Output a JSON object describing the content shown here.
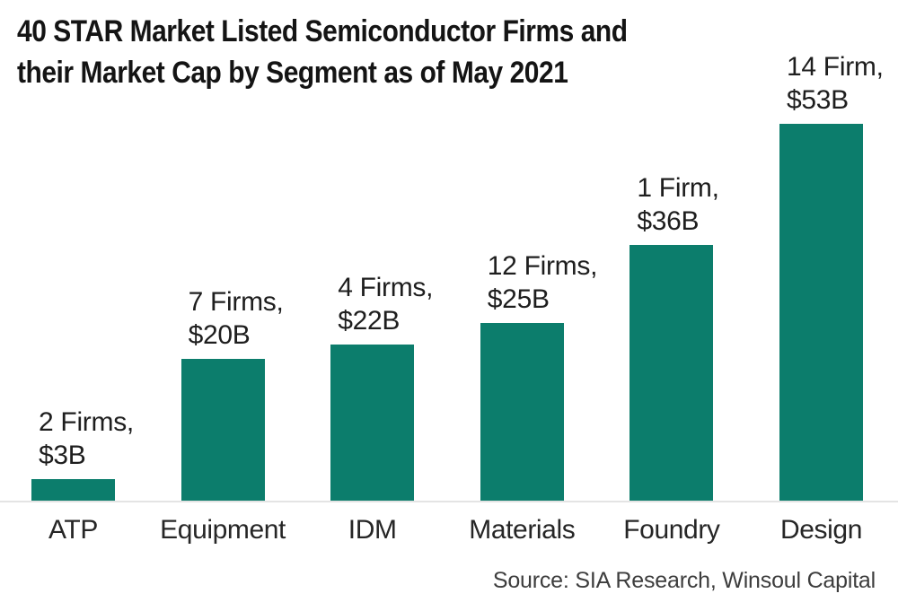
{
  "chart": {
    "title_line1": "40 STAR Market Listed Semiconductor Firms and",
    "title_line2": "their Market Cap by Segment as of May 2021",
    "source": "Source: SIA Research, Winsoul Capital"
  },
  "chart_data": {
    "type": "bar",
    "title": "40 STAR Market Listed Semiconductor Firms and their Market Cap by Segment as of May 2021",
    "categories": [
      "ATP",
      "Equipment",
      "IDM",
      "Materials",
      "Foundry",
      "Design"
    ],
    "values": [
      3,
      20,
      22,
      25,
      36,
      53
    ],
    "value_unit": "$B",
    "firm_counts": [
      2,
      7,
      4,
      12,
      1,
      14
    ],
    "bar_labels": [
      [
        "2 Firms,",
        "$3B"
      ],
      [
        "7 Firms,",
        "$20B"
      ],
      [
        "4 Firms,",
        "$22B"
      ],
      [
        "12 Firms,",
        "$25B"
      ],
      [
        "1 Firm,",
        "$36B"
      ],
      [
        "14 Firm,",
        "$53B"
      ]
    ],
    "xlabel": "",
    "ylabel": "",
    "ylim": [
      0,
      53
    ],
    "grid": false,
    "legend": false,
    "bar_color": "#0c7d6c",
    "source": "Source: SIA Research, Winsoul Capital"
  }
}
